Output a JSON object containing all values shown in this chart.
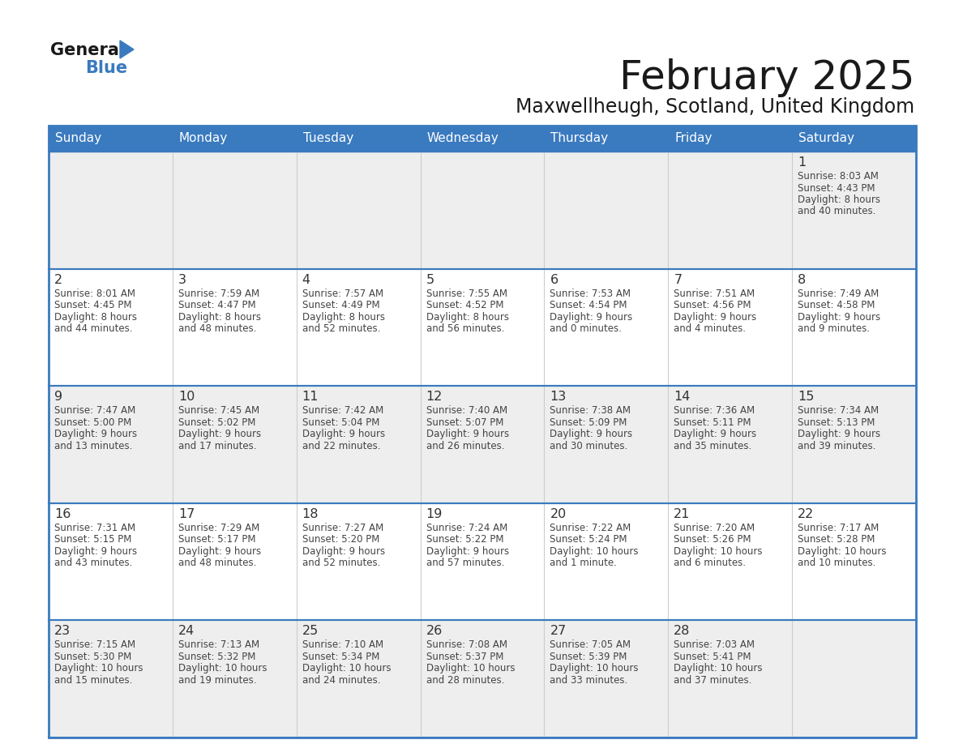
{
  "title": "February 2025",
  "subtitle": "Maxwellheugh, Scotland, United Kingdom",
  "header_bg": "#3a7abf",
  "header_text_color": "#ffffff",
  "day_names": [
    "Sunday",
    "Monday",
    "Tuesday",
    "Wednesday",
    "Thursday",
    "Friday",
    "Saturday"
  ],
  "cell_bg_row0": "#eeeeee",
  "cell_bg_row1": "#ffffff",
  "cell_bg_row2": "#eeeeee",
  "cell_bg_row3": "#ffffff",
  "cell_bg_row4": "#eeeeee",
  "day_num_color": "#333333",
  "info_color": "#444444",
  "border_color": "#3a7abf",
  "grid_line_color": "#cccccc",
  "logo_general_color": "#1a1a1a",
  "logo_blue_color": "#3a7abf",
  "calendar_data": [
    [
      null,
      null,
      null,
      null,
      null,
      null,
      {
        "day": "1",
        "sunrise": "Sunrise: 8:03 AM",
        "sunset": "Sunset: 4:43 PM",
        "daylight1": "Daylight: 8 hours",
        "daylight2": "and 40 minutes."
      }
    ],
    [
      {
        "day": "2",
        "sunrise": "Sunrise: 8:01 AM",
        "sunset": "Sunset: 4:45 PM",
        "daylight1": "Daylight: 8 hours",
        "daylight2": "and 44 minutes."
      },
      {
        "day": "3",
        "sunrise": "Sunrise: 7:59 AM",
        "sunset": "Sunset: 4:47 PM",
        "daylight1": "Daylight: 8 hours",
        "daylight2": "and 48 minutes."
      },
      {
        "day": "4",
        "sunrise": "Sunrise: 7:57 AM",
        "sunset": "Sunset: 4:49 PM",
        "daylight1": "Daylight: 8 hours",
        "daylight2": "and 52 minutes."
      },
      {
        "day": "5",
        "sunrise": "Sunrise: 7:55 AM",
        "sunset": "Sunset: 4:52 PM",
        "daylight1": "Daylight: 8 hours",
        "daylight2": "and 56 minutes."
      },
      {
        "day": "6",
        "sunrise": "Sunrise: 7:53 AM",
        "sunset": "Sunset: 4:54 PM",
        "daylight1": "Daylight: 9 hours",
        "daylight2": "and 0 minutes."
      },
      {
        "day": "7",
        "sunrise": "Sunrise: 7:51 AM",
        "sunset": "Sunset: 4:56 PM",
        "daylight1": "Daylight: 9 hours",
        "daylight2": "and 4 minutes."
      },
      {
        "day": "8",
        "sunrise": "Sunrise: 7:49 AM",
        "sunset": "Sunset: 4:58 PM",
        "daylight1": "Daylight: 9 hours",
        "daylight2": "and 9 minutes."
      }
    ],
    [
      {
        "day": "9",
        "sunrise": "Sunrise: 7:47 AM",
        "sunset": "Sunset: 5:00 PM",
        "daylight1": "Daylight: 9 hours",
        "daylight2": "and 13 minutes."
      },
      {
        "day": "10",
        "sunrise": "Sunrise: 7:45 AM",
        "sunset": "Sunset: 5:02 PM",
        "daylight1": "Daylight: 9 hours",
        "daylight2": "and 17 minutes."
      },
      {
        "day": "11",
        "sunrise": "Sunrise: 7:42 AM",
        "sunset": "Sunset: 5:04 PM",
        "daylight1": "Daylight: 9 hours",
        "daylight2": "and 22 minutes."
      },
      {
        "day": "12",
        "sunrise": "Sunrise: 7:40 AM",
        "sunset": "Sunset: 5:07 PM",
        "daylight1": "Daylight: 9 hours",
        "daylight2": "and 26 minutes."
      },
      {
        "day": "13",
        "sunrise": "Sunrise: 7:38 AM",
        "sunset": "Sunset: 5:09 PM",
        "daylight1": "Daylight: 9 hours",
        "daylight2": "and 30 minutes."
      },
      {
        "day": "14",
        "sunrise": "Sunrise: 7:36 AM",
        "sunset": "Sunset: 5:11 PM",
        "daylight1": "Daylight: 9 hours",
        "daylight2": "and 35 minutes."
      },
      {
        "day": "15",
        "sunrise": "Sunrise: 7:34 AM",
        "sunset": "Sunset: 5:13 PM",
        "daylight1": "Daylight: 9 hours",
        "daylight2": "and 39 minutes."
      }
    ],
    [
      {
        "day": "16",
        "sunrise": "Sunrise: 7:31 AM",
        "sunset": "Sunset: 5:15 PM",
        "daylight1": "Daylight: 9 hours",
        "daylight2": "and 43 minutes."
      },
      {
        "day": "17",
        "sunrise": "Sunrise: 7:29 AM",
        "sunset": "Sunset: 5:17 PM",
        "daylight1": "Daylight: 9 hours",
        "daylight2": "and 48 minutes."
      },
      {
        "day": "18",
        "sunrise": "Sunrise: 7:27 AM",
        "sunset": "Sunset: 5:20 PM",
        "daylight1": "Daylight: 9 hours",
        "daylight2": "and 52 minutes."
      },
      {
        "day": "19",
        "sunrise": "Sunrise: 7:24 AM",
        "sunset": "Sunset: 5:22 PM",
        "daylight1": "Daylight: 9 hours",
        "daylight2": "and 57 minutes."
      },
      {
        "day": "20",
        "sunrise": "Sunrise: 7:22 AM",
        "sunset": "Sunset: 5:24 PM",
        "daylight1": "Daylight: 10 hours",
        "daylight2": "and 1 minute."
      },
      {
        "day": "21",
        "sunrise": "Sunrise: 7:20 AM",
        "sunset": "Sunset: 5:26 PM",
        "daylight1": "Daylight: 10 hours",
        "daylight2": "and 6 minutes."
      },
      {
        "day": "22",
        "sunrise": "Sunrise: 7:17 AM",
        "sunset": "Sunset: 5:28 PM",
        "daylight1": "Daylight: 10 hours",
        "daylight2": "and 10 minutes."
      }
    ],
    [
      {
        "day": "23",
        "sunrise": "Sunrise: 7:15 AM",
        "sunset": "Sunset: 5:30 PM",
        "daylight1": "Daylight: 10 hours",
        "daylight2": "and 15 minutes."
      },
      {
        "day": "24",
        "sunrise": "Sunrise: 7:13 AM",
        "sunset": "Sunset: 5:32 PM",
        "daylight1": "Daylight: 10 hours",
        "daylight2": "and 19 minutes."
      },
      {
        "day": "25",
        "sunrise": "Sunrise: 7:10 AM",
        "sunset": "Sunset: 5:34 PM",
        "daylight1": "Daylight: 10 hours",
        "daylight2": "and 24 minutes."
      },
      {
        "day": "26",
        "sunrise": "Sunrise: 7:08 AM",
        "sunset": "Sunset: 5:37 PM",
        "daylight1": "Daylight: 10 hours",
        "daylight2": "and 28 minutes."
      },
      {
        "day": "27",
        "sunrise": "Sunrise: 7:05 AM",
        "sunset": "Sunset: 5:39 PM",
        "daylight1": "Daylight: 10 hours",
        "daylight2": "and 33 minutes."
      },
      {
        "day": "28",
        "sunrise": "Sunrise: 7:03 AM",
        "sunset": "Sunset: 5:41 PM",
        "daylight1": "Daylight: 10 hours",
        "daylight2": "and 37 minutes."
      },
      null
    ]
  ]
}
